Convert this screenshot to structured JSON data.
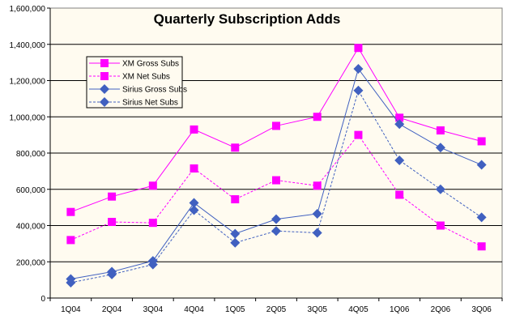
{
  "chart_data": {
    "type": "line",
    "title": "Quarterly Subscription Adds",
    "xlabel": "",
    "ylabel": "",
    "categories": [
      "1Q04",
      "2Q04",
      "3Q04",
      "4Q04",
      "1Q05",
      "2Q05",
      "3Q05",
      "4Q05",
      "1Q06",
      "2Q06",
      "3Q06"
    ],
    "ylim": [
      0,
      1600000
    ],
    "yticks": [
      0,
      200000,
      400000,
      600000,
      800000,
      1000000,
      1200000,
      1400000,
      1600000
    ],
    "ytick_labels": [
      "0",
      "200,000",
      "400,000",
      "600,000",
      "800,000",
      "1,000,000",
      "1,200,000",
      "1,400,000",
      "1,600,000"
    ],
    "grid": true,
    "legend_position": "upper-left",
    "series": [
      {
        "name": "XM Gross Subs",
        "color": "#FF00FF",
        "marker": "square",
        "dash": "solid",
        "values": [
          475000,
          560000,
          620000,
          930000,
          830000,
          950000,
          1000000,
          1380000,
          995000,
          925000,
          865000
        ]
      },
      {
        "name": "XM Net Subs",
        "color": "#FF00FF",
        "marker": "square",
        "dash": "dashed",
        "values": [
          320000,
          420000,
          415000,
          715000,
          545000,
          650000,
          620000,
          900000,
          570000,
          400000,
          285000
        ]
      },
      {
        "name": "Sirius Gross Subs",
        "color": "#4060C0",
        "marker": "diamond",
        "dash": "solid",
        "values": [
          105000,
          145000,
          205000,
          525000,
          355000,
          435000,
          465000,
          1265000,
          960000,
          830000,
          735000
        ]
      },
      {
        "name": "Sirius Net Subs",
        "color": "#4060C0",
        "marker": "diamond",
        "dash": "dashed",
        "values": [
          85000,
          130000,
          185000,
          485000,
          305000,
          370000,
          360000,
          1145000,
          760000,
          600000,
          445000
        ]
      }
    ]
  }
}
